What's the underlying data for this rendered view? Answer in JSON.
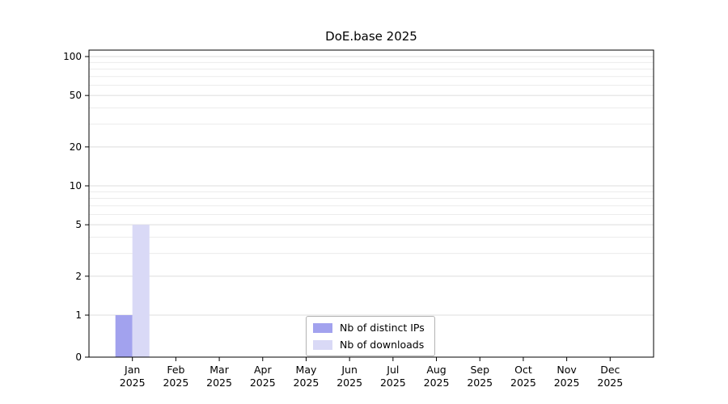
{
  "chart_data": {
    "type": "bar",
    "title": "DoE.base 2025",
    "categories": [
      "Jan 2025",
      "Feb 2025",
      "Mar 2025",
      "Apr 2025",
      "May 2025",
      "Jun 2025",
      "Jul 2025",
      "Aug 2025",
      "Sep 2025",
      "Oct 2025",
      "Nov 2025",
      "Dec 2025"
    ],
    "series": [
      {
        "name": "Nb of distinct IPs",
        "color": "#a2a2ee",
        "values": [
          1,
          0,
          0,
          0,
          0,
          0,
          0,
          0,
          0,
          0,
          0,
          0
        ]
      },
      {
        "name": "Nb of downloads",
        "color": "#d9d9f6",
        "values": [
          5,
          0,
          0,
          0,
          0,
          0,
          0,
          0,
          0,
          0,
          0,
          0
        ]
      }
    ],
    "yticks": [
      0,
      1,
      2,
      5,
      10,
      20,
      50,
      100
    ],
    "ylim": [
      0,
      112
    ],
    "yscale": "log-with-zero-baseline",
    "grid": true,
    "legend_position": "bottom-center",
    "axis_color": "#000000",
    "major_grid_color": "#dcdcdc",
    "minor_grid_color": "#ececec"
  }
}
